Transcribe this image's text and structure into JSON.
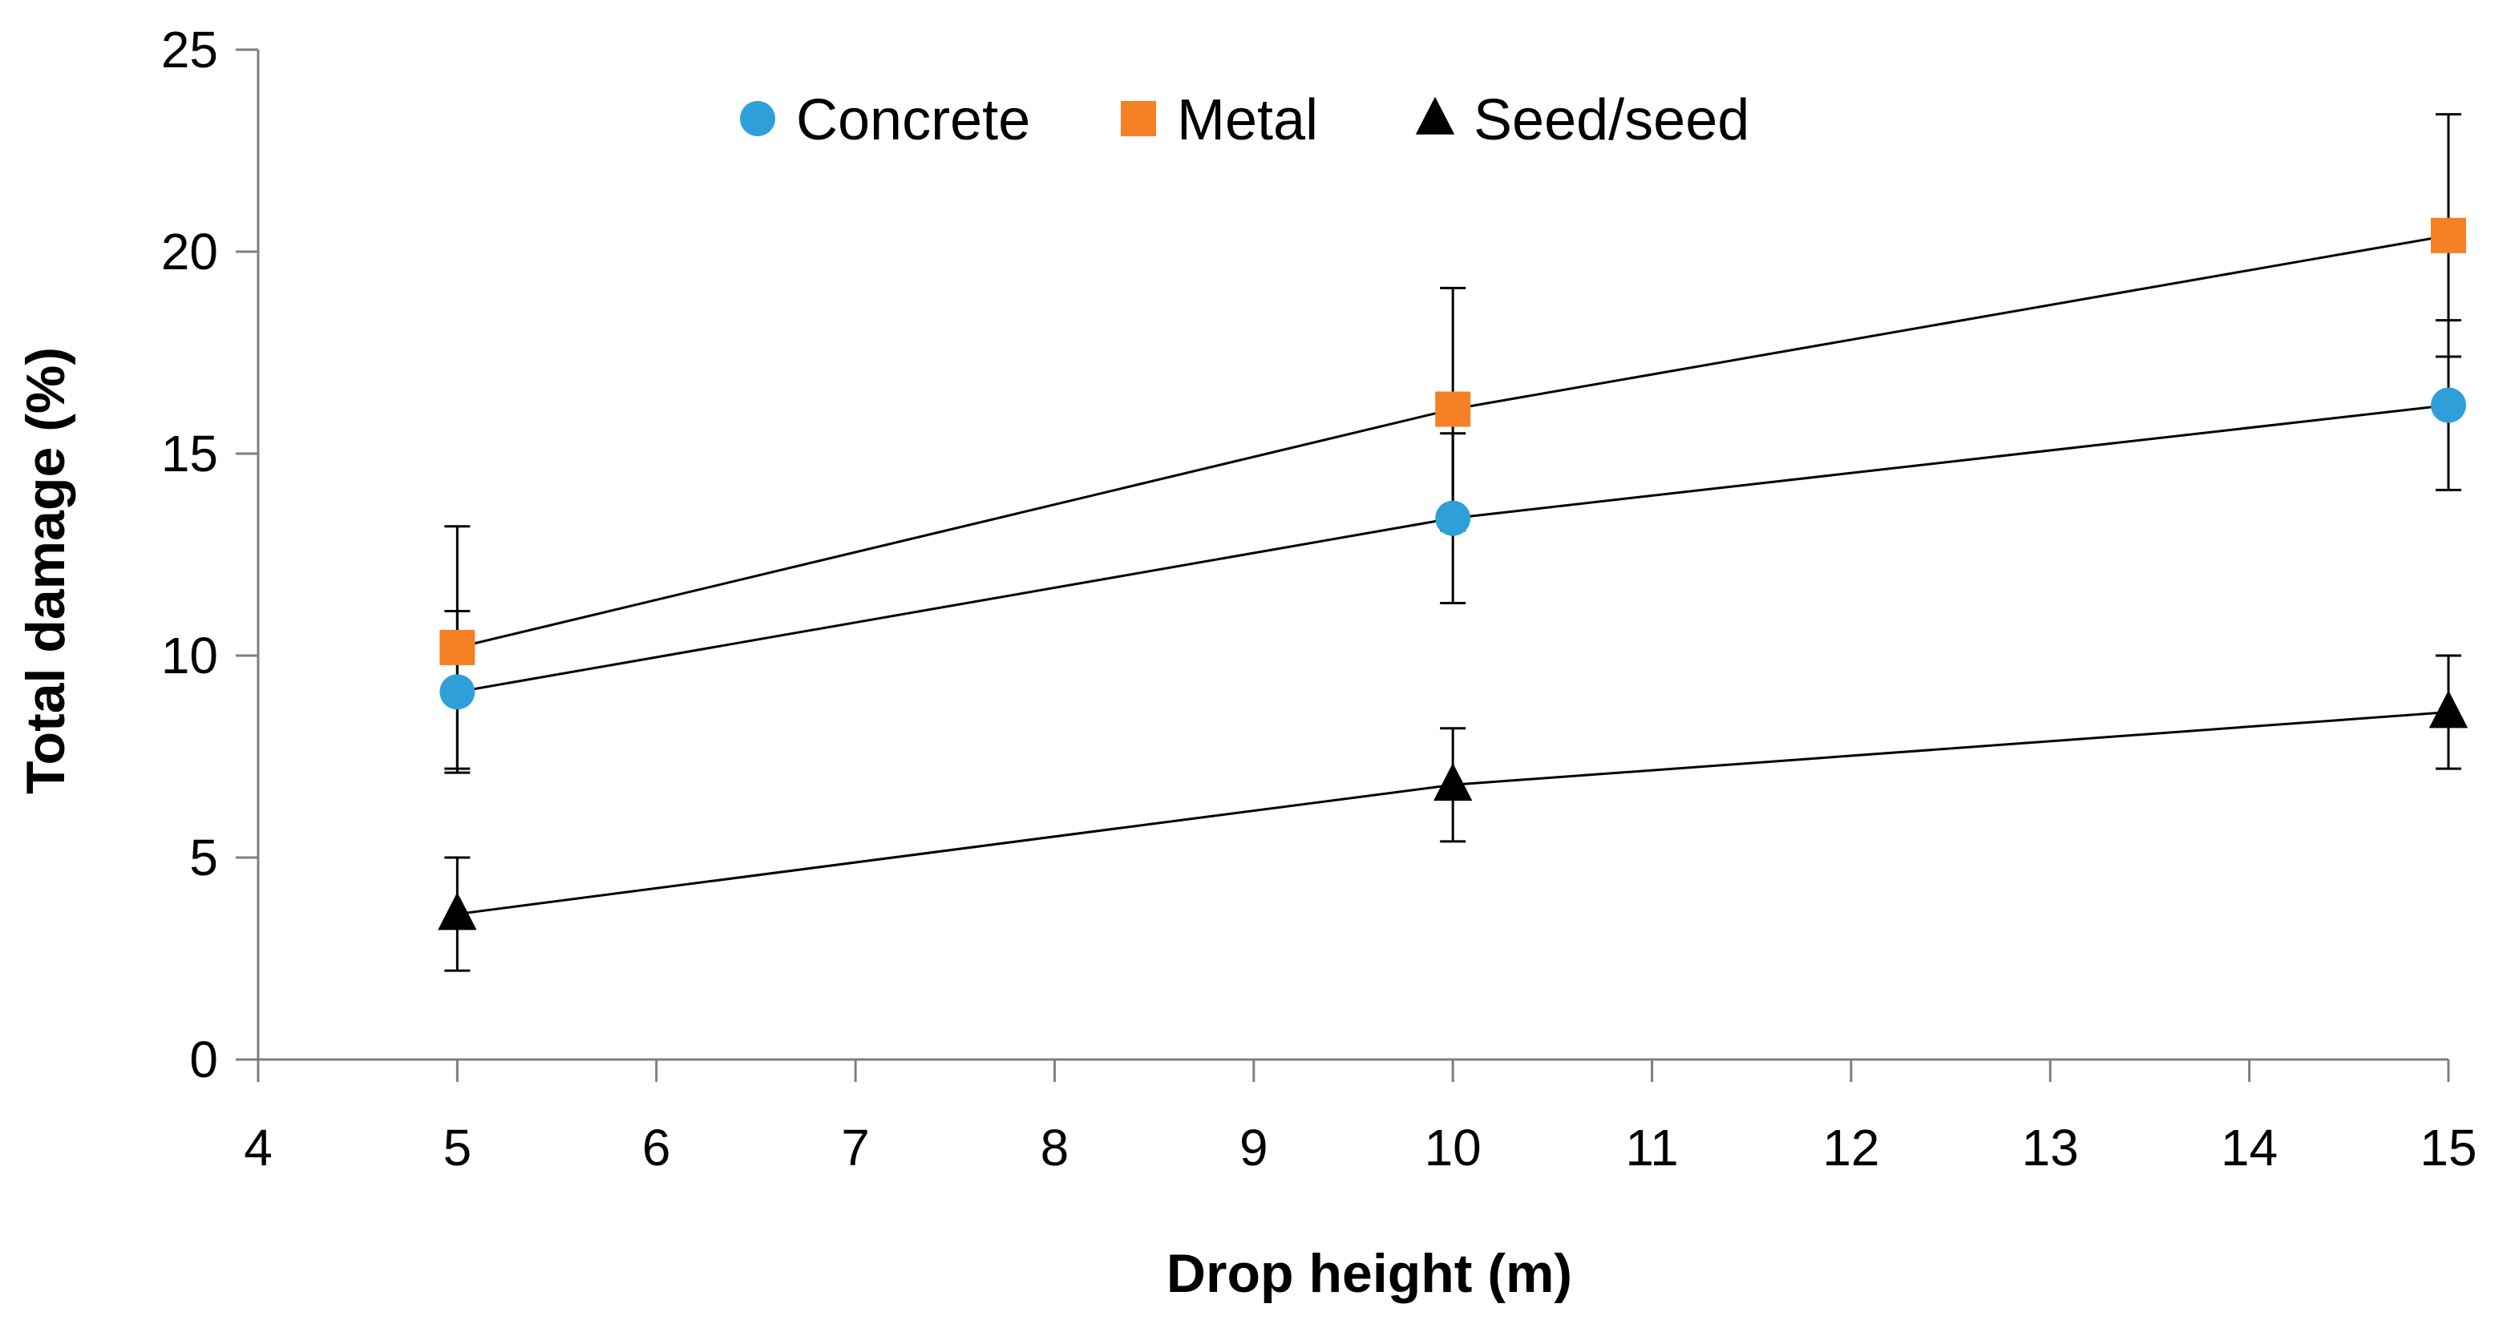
{
  "chart_data": {
    "type": "line",
    "title": "",
    "xlabel": "Drop height (m)",
    "ylabel": "Total damage (%)",
    "xlim": [
      4,
      15
    ],
    "ylim": [
      0,
      25
    ],
    "xticks": [
      4,
      5,
      6,
      7,
      8,
      9,
      10,
      11,
      12,
      13,
      14,
      15
    ],
    "yticks": [
      0,
      5,
      10,
      15,
      20,
      25
    ],
    "grid": false,
    "legend_position": "top",
    "x": [
      5,
      10,
      15
    ],
    "series": [
      {
        "name": "Concrete",
        "marker": "circle",
        "color": "#2e9fd8",
        "values": [
          9.1,
          13.4,
          16.2
        ],
        "error": [
          2.0,
          2.1,
          2.1
        ]
      },
      {
        "name": "Metal",
        "marker": "square",
        "color": "#f58025",
        "values": [
          10.2,
          16.1,
          20.4
        ],
        "error": [
          3.0,
          3.0,
          3.0
        ]
      },
      {
        "name": "Seed/seed",
        "marker": "triangle",
        "color": "#000000",
        "values": [
          3.6,
          6.8,
          8.6
        ],
        "error": [
          1.4,
          1.4,
          1.4
        ]
      }
    ]
  }
}
